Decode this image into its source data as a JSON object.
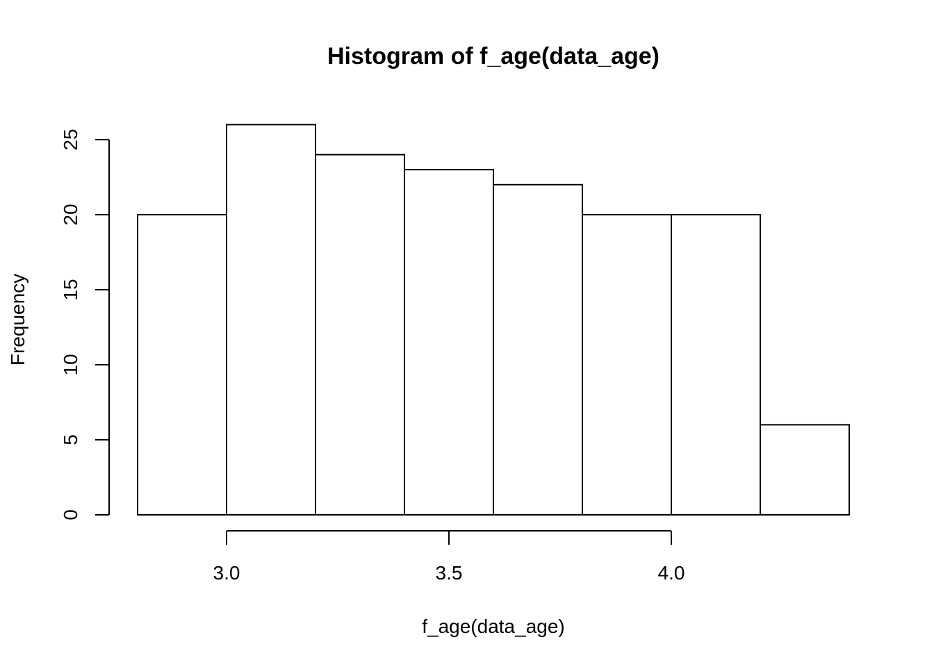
{
  "chart_data": {
    "type": "bar",
    "title": "Histogram of f_age(data_age)",
    "xlabel": "f_age(data_age)",
    "ylabel": "Frequency",
    "bins": [
      {
        "start": 2.8,
        "end": 3.0,
        "count": 20
      },
      {
        "start": 3.0,
        "end": 3.2,
        "count": 26
      },
      {
        "start": 3.2,
        "end": 3.4,
        "count": 24
      },
      {
        "start": 3.4,
        "end": 3.6,
        "count": 23
      },
      {
        "start": 3.6,
        "end": 3.8,
        "count": 22
      },
      {
        "start": 3.8,
        "end": 4.0,
        "count": 20
      },
      {
        "start": 4.0,
        "end": 4.2,
        "count": 20
      },
      {
        "start": 4.2,
        "end": 4.4,
        "count": 6
      }
    ],
    "x_ticks": [
      {
        "value": 3.0,
        "label": "3.0"
      },
      {
        "value": 3.5,
        "label": "3.5"
      },
      {
        "value": 4.0,
        "label": "4.0"
      }
    ],
    "y_ticks": [
      {
        "value": 0,
        "label": "0"
      },
      {
        "value": 5,
        "label": "5"
      },
      {
        "value": 10,
        "label": "10"
      },
      {
        "value": 15,
        "label": "15"
      },
      {
        "value": 20,
        "label": "20"
      },
      {
        "value": 25,
        "label": "25"
      }
    ],
    "xlim": [
      2.8,
      4.4
    ],
    "ylim": [
      0,
      26
    ],
    "grid": false,
    "bar_fill": "#ffffff",
    "bar_stroke": "#000000"
  }
}
